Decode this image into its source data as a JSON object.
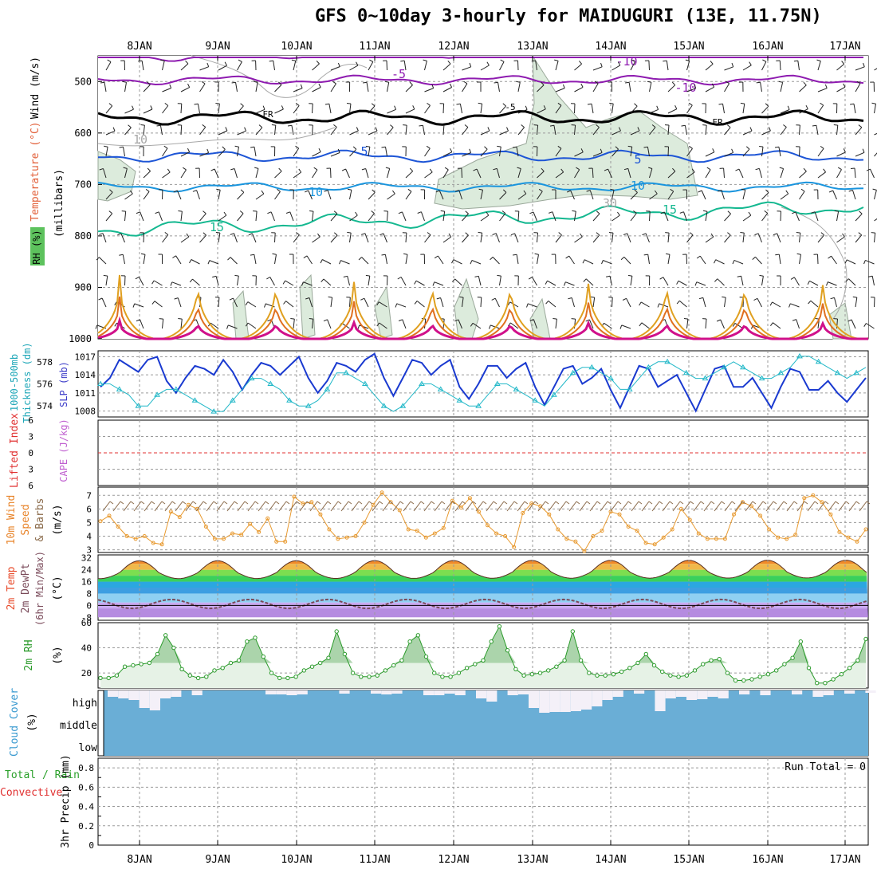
{
  "title": "GFS 0~10day 3-hourly for MAIDUGURI (13E, 11.75N)",
  "colors": {
    "grid": "#9a9a9a",
    "rh_fill": "#dcebdc",
    "rh_edge": "#9aa89a",
    "contour_grey": "#a8a8a8",
    "fr_line": "#000000",
    "t_m10": "#8e1bb0",
    "t_m5": "#8e1bb0",
    "t_5": "#1d55d6",
    "t_10": "#1994dd",
    "t_15": "#14b890",
    "t_warm1": "#e0a020",
    "t_warm2": "#e07020",
    "t_warm3": "#d0108a",
    "thickness": "#22b8c8",
    "slp": "#1a3ad0",
    "lifted": "#e03030",
    "wind_speed": "#e89a30",
    "wind_barb": "#8a6a4a",
    "rh2m_line": "#2a9a2a",
    "rh2m_fill": "#e6f2e6",
    "rh2m_peak": "#9ccc9c",
    "cloud_bg": "#6aaed6",
    "cloud_white": "#f4f0f8",
    "dewpt": "#7a4a5a"
  },
  "x_axis": {
    "dates_top": [
      "8JAN",
      "9JAN",
      "10JAN",
      "11JAN",
      "12JAN",
      "13JAN",
      "14JAN",
      "15JAN",
      "16JAN",
      "17JAN"
    ],
    "dates_bottom": [
      "8JAN",
      "9JAN",
      "10JAN",
      "11JAN",
      "12JAN",
      "13JAN",
      "14JAN",
      "15JAN",
      "16JAN",
      "17JAN"
    ]
  },
  "panels": {
    "sounding": {
      "ylabel_lines": [
        "Wind (m/s)",
        "Temperature (°C)",
        "(millibars)",
        "RH (%)"
      ],
      "yticks": [
        "500",
        "600",
        "700",
        "800",
        "900",
        "1000"
      ],
      "contour_labels": [
        "-10",
        "-5",
        "FR",
        "5",
        "10",
        "15",
        "-10",
        "-5",
        "FR",
        "5",
        "10",
        "15",
        "10",
        "30"
      ]
    },
    "thickness": {
      "ylabel_left": "Thickness (dm)",
      "ylabel_left2": "1000-500mb",
      "ylabel_right": "SLP (mb)",
      "yticks_left": [
        "578",
        "576",
        "574"
      ],
      "yticks_right": [
        "1017",
        "1014",
        "1011",
        "1008"
      ]
    },
    "stability": {
      "ylabel_left": "Lifted Index",
      "ylabel_right": "CAPE (J/kg)",
      "yticks": [
        "6",
        "3",
        "0",
        "3",
        "6"
      ]
    },
    "wind10m": {
      "ylabel": "10m Wind Speed (m/s) & Barbs",
      "ylabel_lines": [
        "10m Wind",
        "Speed",
        "& Barbs",
        "(m/s)"
      ],
      "yticks": [
        "7",
        "6",
        "5",
        "4",
        "3"
      ]
    },
    "temp2m": {
      "ylabel_lines": [
        "2m Temp",
        "2m DewPt",
        "(6hr Min/Max)",
        "(°C)"
      ],
      "yticks": [
        "32",
        "24",
        "16",
        "8",
        "0",
        "-8"
      ]
    },
    "rh2m": {
      "ylabel_lines": [
        "2m RH",
        "(%)"
      ],
      "yticks": [
        "60",
        "40",
        "20"
      ]
    },
    "cloud": {
      "ylabel_lines": [
        "Cloud Cover",
        "(%)"
      ],
      "levels": [
        "high",
        "middle",
        "low"
      ]
    },
    "precip": {
      "ylabel_lines": [
        "Total / Rain",
        "Convective",
        "3hr Precip (mm)"
      ],
      "yticks": [
        "0.8",
        "0.6",
        "0.4",
        "0.2",
        "0"
      ],
      "run_total": "Run Total = 0"
    }
  },
  "chart_data": [
    {
      "type": "line",
      "title": "1000-500mb Thickness (dm) and SLP (mb)",
      "series": [
        {
          "name": "SLP (mb)",
          "values": [
            1012.0,
            1013.5,
            1016.5,
            1015.5,
            1014.5,
            1016.5,
            1017.0,
            1013.0,
            1011.0,
            1013.5,
            1015.5,
            1015.0,
            1014.0,
            1016.5,
            1014.5,
            1011.5,
            1014.0,
            1016.0,
            1015.5,
            1014.0,
            1015.5,
            1017.0,
            1013.5,
            1011.0,
            1013.0,
            1016.0,
            1015.5,
            1014.5,
            1016.5,
            1017.5,
            1013.5,
            1010.5,
            1013.5,
            1016.5,
            1016.0,
            1014.0,
            1015.5,
            1016.5,
            1012.0,
            1010.0,
            1012.5,
            1015.5,
            1015.5,
            1013.5,
            1015.0,
            1016.0,
            1012.0,
            1009.0,
            1012.0,
            1015.0,
            1015.5,
            1012.5,
            1013.5,
            1015.0,
            1011.5,
            1008.5,
            1012.0,
            1015.5,
            1015.0,
            1012.0,
            1013.0,
            1014.0,
            1011.0,
            1008.0,
            1011.5,
            1015.0,
            1015.5,
            1012.0,
            1012.0,
            1013.5,
            1011.0,
            1008.5,
            1012.0,
            1015.0,
            1014.5,
            1011.5,
            1011.5,
            1013.0,
            1011.0,
            1009.5,
            1011.5,
            1013.5
          ]
        },
        {
          "name": "Thickness (dm)",
          "values": [
            576.0,
            576.0,
            575.5,
            575.0,
            574.0,
            574.0,
            575.0,
            575.5,
            575.5,
            575.0,
            574.5,
            574.0,
            573.5,
            573.5,
            574.5,
            575.5,
            576.5,
            576.5,
            576.0,
            575.5,
            574.5,
            574.0,
            574.0,
            574.5,
            575.5,
            577.0,
            577.0,
            576.5,
            576.0,
            575.0,
            574.0,
            573.5,
            574.0,
            575.0,
            576.0,
            576.0,
            575.5,
            575.0,
            574.5,
            574.0,
            574.0,
            575.0,
            576.0,
            576.0,
            575.5,
            575.0,
            574.5,
            574.0,
            575.0,
            576.0,
            577.0,
            577.5,
            577.5,
            577.0,
            576.5,
            575.5,
            575.5,
            576.5,
            577.5,
            578.0,
            578.0,
            577.5,
            577.0,
            576.5,
            576.5,
            577.0,
            577.5,
            578.0,
            577.5,
            577.0,
            576.5,
            576.5,
            577.0,
            577.5,
            578.5,
            578.5,
            578.0,
            577.5,
            577.0,
            576.5,
            577.0,
            577.5
          ]
        }
      ],
      "ylim_left": [
        573,
        579
      ],
      "ylim_right": [
        1007,
        1018
      ]
    },
    {
      "type": "line",
      "title": "10m Wind Speed (m/s)",
      "series": [
        {
          "name": "10m Wind Speed",
          "values": [
            5.1,
            5.5,
            4.7,
            4.0,
            3.8,
            4.0,
            3.5,
            3.4,
            5.8,
            5.4,
            6.3,
            6.0,
            4.7,
            3.8,
            3.8,
            4.2,
            4.1,
            4.9,
            4.3,
            5.3,
            3.6,
            3.6,
            6.9,
            6.4,
            6.5,
            5.6,
            4.5,
            3.8,
            3.9,
            4.0,
            5.0,
            6.3,
            7.2,
            6.5,
            5.9,
            4.5,
            4.4,
            3.9,
            4.2,
            4.6,
            6.6,
            6.1,
            6.8,
            5.8,
            4.8,
            4.2,
            4.0,
            3.2,
            5.7,
            6.4,
            6.2,
            5.6,
            4.5,
            3.8,
            3.6,
            2.9,
            4.0,
            4.4,
            5.8,
            5.6,
            4.7,
            4.4,
            3.5,
            3.4,
            3.9,
            4.5,
            6.0,
            5.2,
            4.2,
            3.8,
            3.8,
            3.8,
            5.6,
            6.5,
            6.2,
            5.5,
            4.5,
            3.9,
            3.8,
            4.1,
            6.8,
            7.0,
            6.5,
            5.6,
            4.3,
            3.9,
            3.6,
            4.5
          ]
        }
      ],
      "ylim": [
        2.8,
        7.6
      ]
    },
    {
      "type": "line",
      "title": "2m RH (%)",
      "series": [
        {
          "name": "2m RH",
          "values": [
            16,
            16,
            18,
            25,
            26,
            27,
            28,
            35,
            50,
            40,
            23,
            18,
            16,
            17,
            22,
            24,
            28,
            30,
            45,
            48,
            33,
            20,
            16,
            16,
            17,
            22,
            25,
            28,
            32,
            53,
            35,
            20,
            17,
            17,
            18,
            22,
            26,
            30,
            45,
            50,
            33,
            20,
            17,
            17,
            20,
            24,
            27,
            30,
            45,
            57,
            38,
            23,
            18,
            19,
            20,
            22,
            25,
            30,
            53,
            30,
            20,
            18,
            18,
            19,
            21,
            24,
            28,
            35,
            26,
            21,
            18,
            17,
            18,
            22,
            27,
            30,
            31,
            20,
            14,
            14,
            15,
            17,
            19,
            22,
            27,
            32,
            45,
            24,
            12,
            12,
            15,
            19,
            24,
            30,
            47
          ]
        }
      ],
      "ylim": [
        8,
        60
      ]
    }
  ]
}
